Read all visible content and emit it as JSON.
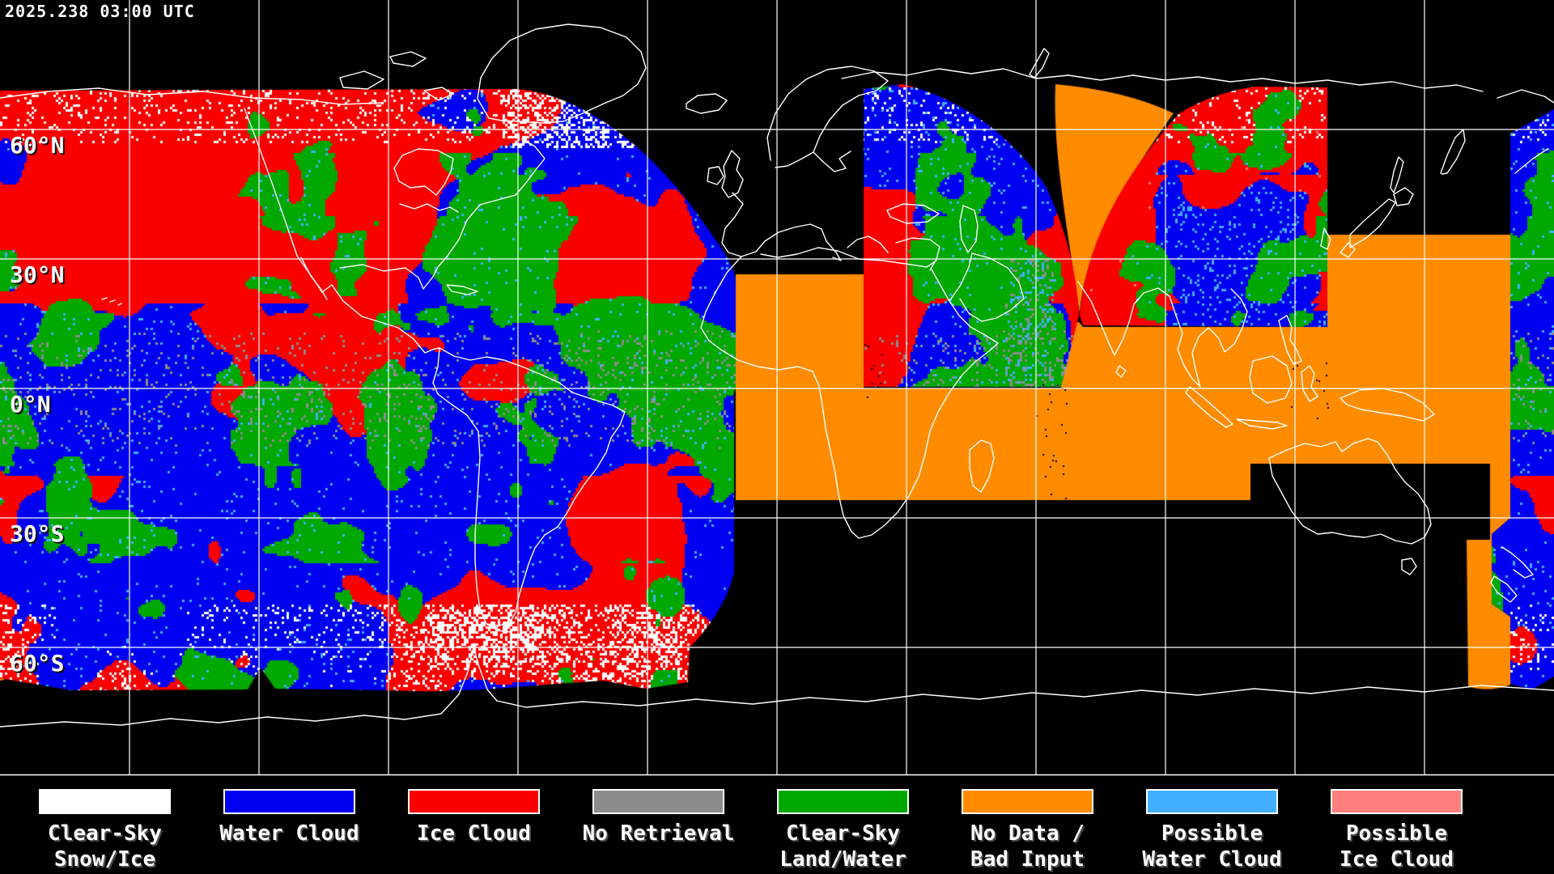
{
  "header": {
    "timestamp": "2025.238 03:00 UTC"
  },
  "palette": {
    "background": "#000000",
    "graticule": "#FFFFFF",
    "coastline": "#FFFFFF",
    "clear_sky_snow_ice": "#FFFFFF",
    "water_cloud": "#0000F0",
    "ice_cloud": "#FA0000",
    "no_retrieval": "#8C8C8C",
    "clear_sky_land_water": "#00A800",
    "no_data_bad_input": "#FF8C00",
    "possible_water_cloud": "#42AEFF",
    "possible_ice_cloud": "#FF7E7E"
  },
  "map": {
    "latitude_labels": [
      {
        "text": "60°N",
        "lat": 60
      },
      {
        "text": "30°N",
        "lat": 30
      },
      {
        "text": "0°N",
        "lat": 0
      },
      {
        "text": "30°S",
        "lat": -30
      },
      {
        "text": "60°S",
        "lat": -60
      }
    ],
    "grid": {
      "lat_step_deg": 30,
      "lon_step_deg": 30
    }
  },
  "legend": {
    "items": [
      {
        "key": "clear_sky_snow_ice",
        "lines": [
          "Clear-Sky",
          "Snow/Ice"
        ]
      },
      {
        "key": "water_cloud",
        "lines": [
          "Water Cloud"
        ]
      },
      {
        "key": "ice_cloud",
        "lines": [
          "Ice Cloud"
        ]
      },
      {
        "key": "no_retrieval",
        "lines": [
          "No Retrieval"
        ]
      },
      {
        "key": "clear_sky_land_water",
        "lines": [
          "Clear-Sky",
          "Land/Water"
        ]
      },
      {
        "key": "no_data_bad_input",
        "lines": [
          "No Data /",
          "Bad Input"
        ]
      },
      {
        "key": "possible_water_cloud",
        "lines": [
          "Possible",
          "Water Cloud"
        ]
      },
      {
        "key": "possible_ice_cloud",
        "lines": [
          "Possible",
          "Ice Cloud"
        ]
      }
    ]
  }
}
